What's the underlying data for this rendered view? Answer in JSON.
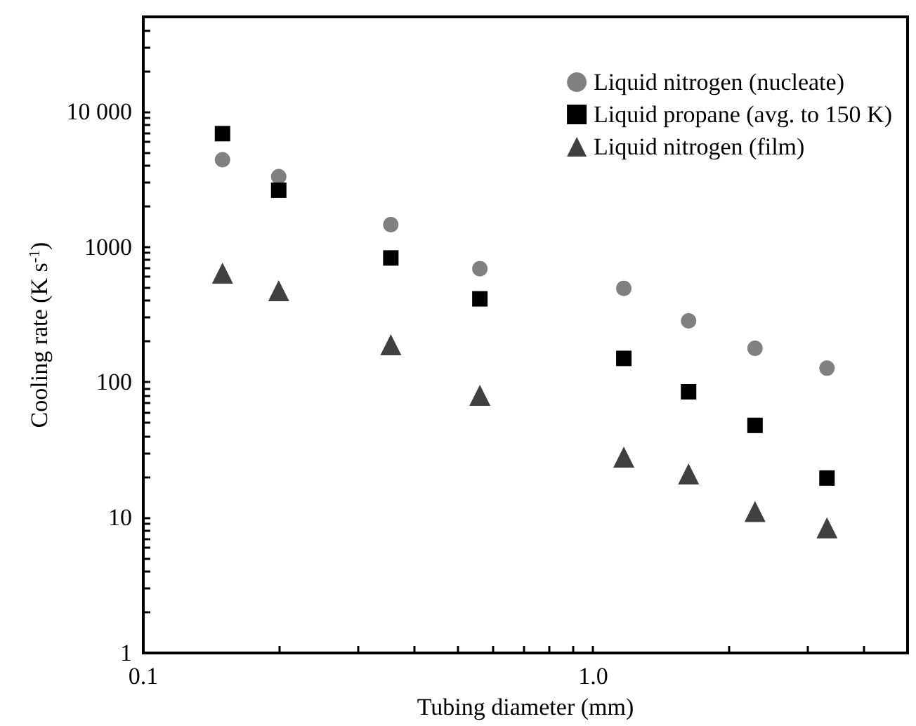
{
  "chart_data": {
    "type": "scatter",
    "xlabel": "Tubing diameter (mm)",
    "ylabel": "Cooling rate (K s$^{-1}$)",
    "log": "xy",
    "grid": false,
    "legend": "top right",
    "x": [
      0.15,
      0.2,
      0.355,
      0.56,
      1.17,
      1.63,
      2.29,
      3.31
    ],
    "xlim": [
      0.1,
      5
    ],
    "ylim": [
      1,
      50000
    ],
    "xticks": [
      0.1,
      {
        "value": 0.2,
        "label": null
      },
      {
        "value": 0.3,
        "label": null
      },
      {
        "value": 0.4,
        "label": null
      },
      {
        "value": 0.5,
        "label": null
      },
      {
        "value": 0.6,
        "label": null
      },
      {
        "value": 0.7,
        "label": null
      },
      {
        "value": 0.8,
        "label": null
      },
      {
        "value": 0.9,
        "label": null
      },
      {
        "value": 1,
        "label": "1.0"
      },
      {
        "value": 2,
        "label": null
      },
      {
        "value": 3,
        "label": null
      },
      {
        "value": 4,
        "label": null
      }
    ],
    "yticks": [
      1,
      {
        "value": 2,
        "label": null
      },
      {
        "value": 3,
        "label": null
      },
      {
        "value": 4,
        "label": null
      },
      {
        "value": 5,
        "label": null
      },
      {
        "value": 6,
        "label": null
      },
      {
        "value": 7,
        "label": null
      },
      {
        "value": 8,
        "label": null
      },
      {
        "value": 9,
        "label": null
      },
      10,
      {
        "value": 20,
        "label": null
      },
      {
        "value": 30,
        "label": null
      },
      {
        "value": 40,
        "label": null
      },
      {
        "value": 50,
        "label": null
      },
      {
        "value": 60,
        "label": null
      },
      {
        "value": 70,
        "label": null
      },
      {
        "value": 80,
        "label": null
      },
      {
        "value": 90,
        "label": null
      },
      100,
      {
        "value": 200,
        "label": null
      },
      {
        "value": 300,
        "label": null
      },
      {
        "value": 400,
        "label": null
      },
      {
        "value": 500,
        "label": null
      },
      {
        "value": 600,
        "label": null
      },
      {
        "value": 700,
        "label": null
      },
      {
        "value": 800,
        "label": null
      },
      {
        "value": 900,
        "label": null
      },
      1000,
      {
        "value": 2000,
        "label": null
      },
      {
        "value": 3000,
        "label": null
      },
      {
        "value": 4000,
        "label": null
      },
      {
        "value": 5000,
        "label": null
      },
      {
        "value": 6000,
        "label": null
      },
      {
        "value": 7000,
        "label": null
      },
      {
        "value": 8000,
        "label": null
      },
      {
        "value": 9000,
        "label": null
      },
      {
        "value": 10000,
        "label": "10 000"
      },
      {
        "value": 20000,
        "label": null
      },
      {
        "value": 30000,
        "label": null
      },
      {
        "value": 40000,
        "label": null
      }
    ],
    "series": [
      {
        "name": "Liquid nitrogen (nucleate)",
        "color": "#808080",
        "marker": "circle",
        "values": [
          4400,
          3300,
          1460,
          690,
          494,
          284,
          178,
          127
        ]
      },
      {
        "name": "Liquid propane (avg. to 150 K)",
        "color": "#000000",
        "marker": "square",
        "values": [
          6860,
          2620,
          828,
          413,
          150,
          85,
          48,
          19.6
        ]
      },
      {
        "name": "Liquid nitrogen (film)",
        "color": "#404040",
        "marker": "triangle",
        "values": [
          640,
          475,
          189,
          80,
          28,
          21,
          11.1,
          8.4
        ]
      }
    ]
  }
}
